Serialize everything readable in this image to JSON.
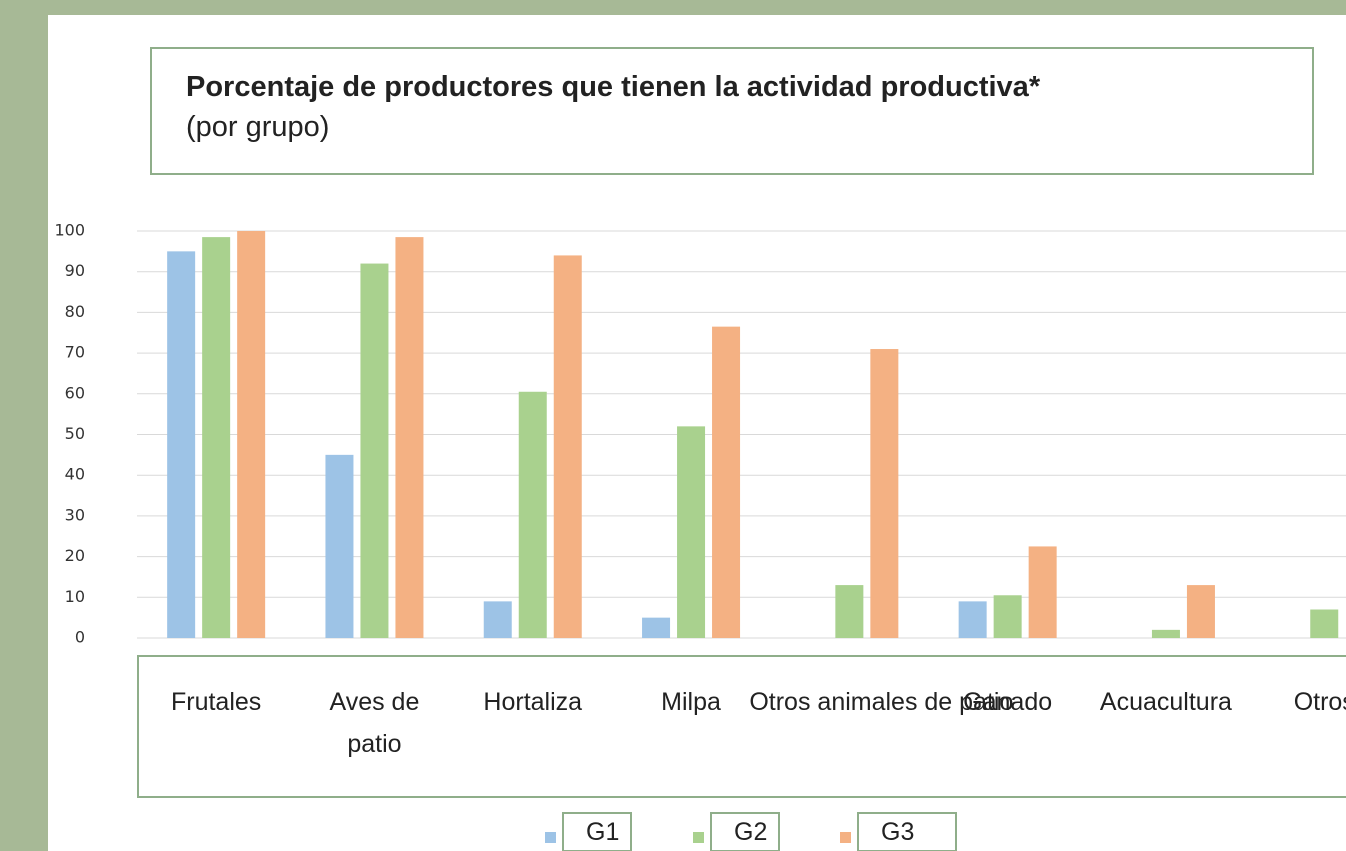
{
  "chart_data": {
    "type": "bar",
    "title": "Porcentaje de productores que tienen la actividad productiva*",
    "subtitle": "(por grupo)",
    "categories": [
      "Frutales",
      "Aves de patio",
      "Hortaliza",
      "Milpa",
      "Otros animales de patio",
      "Ganado",
      "Acuacultura",
      "Otros"
    ],
    "series": [
      {
        "name": "G1",
        "color": "#9dc3e6",
        "values": [
          95,
          45,
          9,
          5,
          0,
          9,
          0,
          0
        ]
      },
      {
        "name": "G2",
        "color": "#a9d18e",
        "values": [
          98.5,
          92,
          60.5,
          52,
          13,
          10.5,
          2,
          7
        ]
      },
      {
        "name": "G3",
        "color": "#f4b183",
        "values": [
          100,
          98.5,
          94,
          76.5,
          71,
          22.5,
          13,
          null
        ]
      }
    ],
    "ylim": [
      0,
      100
    ],
    "yticks": [
      0,
      10,
      20,
      30,
      40,
      50,
      60,
      70,
      80,
      90,
      100
    ],
    "grid": true
  }
}
